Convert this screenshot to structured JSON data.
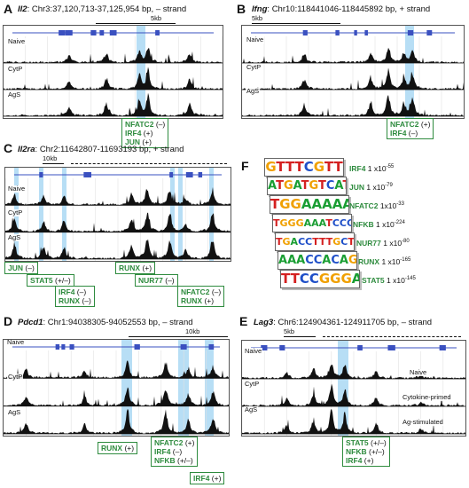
{
  "panels": {
    "A": {
      "label": "A",
      "gene": "Il2",
      "coords": ": Chr3:37,120,713-37,125,954 bp, – strand",
      "scale": "5kb",
      "tracks": [
        "Naive",
        "CytP",
        "AgS"
      ],
      "tf_boxes": [
        {
          "lines": [
            {
              "name": "NFATC2",
              "sign": "(–)"
            },
            {
              "name": "IRF4",
              "sign": "(+)"
            },
            {
              "name": "JUN",
              "sign": "(+)"
            }
          ]
        }
      ]
    },
    "B": {
      "label": "B",
      "gene": "Ifng",
      "coords": ": Chr10:118441046-118445892 bp, + strand",
      "scale": "5kb",
      "tracks": [
        "Naive",
        "CytP",
        "AgS"
      ],
      "tf_boxes": [
        {
          "lines": [
            {
              "name": "NFATC2",
              "sign": "(+)"
            },
            {
              "name": "IRF4",
              "sign": "(–)"
            }
          ]
        }
      ]
    },
    "C": {
      "label": "C",
      "gene": "Il2ra",
      "coords": ": Chr2:11642807-11693193 bp, + strand",
      "scale": "10kb",
      "tracks": [
        "Naive",
        "CytP",
        "AgS"
      ],
      "tf_boxes": [
        {
          "lines": [
            {
              "name": "JUN",
              "sign": "(–)"
            }
          ]
        },
        {
          "lines": [
            {
              "name": "STAT5",
              "sign": "(+/–)"
            }
          ]
        },
        {
          "lines": [
            {
              "name": "IRF4",
              "sign": "(–)"
            },
            {
              "name": "RUNX",
              "sign": "(–)"
            }
          ]
        },
        {
          "lines": [
            {
              "name": "RUNX",
              "sign": "(+)"
            }
          ]
        },
        {
          "lines": [
            {
              "name": "NUR77",
              "sign": "(–)"
            }
          ]
        },
        {
          "lines": [
            {
              "name": "NFATC2",
              "sign": "(–)"
            },
            {
              "name": "RUNX",
              "sign": "(+)"
            }
          ]
        }
      ]
    },
    "D": {
      "label": "D",
      "gene": "Pdcd1",
      "coords": ": Chr1:94038305-94052553 bp, – strand",
      "scale": "10kb",
      "tracks": [
        "Naive",
        "CytP",
        "AgS"
      ],
      "tf_boxes": [
        {
          "lines": [
            {
              "name": "RUNX",
              "sign": "(+)"
            }
          ]
        },
        {
          "lines": [
            {
              "name": "NFATC2",
              "sign": "(+)"
            },
            {
              "name": "IRF4",
              "sign": "(–)"
            },
            {
              "name": "NFKB",
              "sign": "(+/–)"
            }
          ]
        },
        {
          "lines": [
            {
              "name": "IRF4",
              "sign": "(+)"
            }
          ]
        }
      ]
    },
    "E": {
      "label": "E",
      "gene": "Lag3",
      "coords": ": Chr6:124904361-124911705 bp, – strand",
      "scale": "5kb",
      "tracks": [
        "Naive",
        "CytP",
        "AgS"
      ],
      "side_labels": [
        "Naive",
        "Cytokine-primed",
        "Ag-stimulated"
      ],
      "tf_boxes": [
        {
          "lines": [
            {
              "name": "STAT5",
              "sign": "(+/–)"
            },
            {
              "name": "NFKB",
              "sign": "(+/–)"
            },
            {
              "name": "IRF4",
              "sign": "(+)"
            }
          ]
        }
      ]
    },
    "F": {
      "label": "F",
      "motifs": [
        {
          "seq": "GTTTCGTT",
          "name": "IRF4",
          "p_base": "1 x10",
          "p_exp": "-55"
        },
        {
          "seq": "ATGATGTCAT",
          "name": "JUN",
          "p_base": "1 x10",
          "p_exp": "-79"
        },
        {
          "seq": "TGGAAAAA",
          "name": "NFATC2",
          "p_base": "1x10",
          "p_exp": "-33"
        },
        {
          "seq": "TGGGAAATCCCC",
          "name": "NFKB",
          "p_base": "1 x10",
          "p_exp": "-224"
        },
        {
          "seq": "TGACCTTTGCTT",
          "name": "NUR77",
          "p_base": "1 x10",
          "p_exp": "-80"
        },
        {
          "seq": "AAACCACAGC",
          "name": "RUNX",
          "p_base": "1 x10",
          "p_exp": "-165"
        },
        {
          "seq": "TTCCGGGAA",
          "name": "STAT5",
          "p_base": "1 x10",
          "p_exp": "-145"
        }
      ]
    }
  }
}
